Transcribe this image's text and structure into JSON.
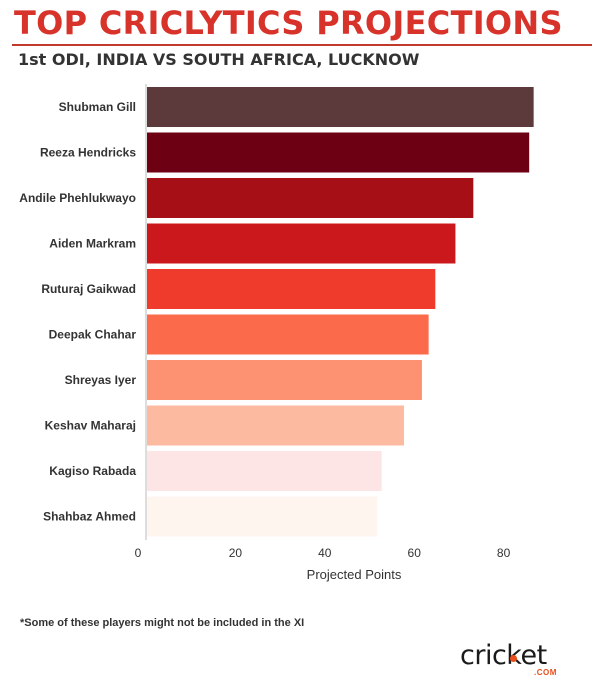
{
  "header": {
    "title": "TOP CRICLYTICS PROJECTIONS",
    "subtitle": "1st ODI, INDIA VS SOUTH AFRICA, LUCKNOW"
  },
  "footnote": "*Some of these players might not be included in the XI",
  "logo": {
    "text": "cricket",
    "sub": ".COM",
    "accent_color": "#e84e1b"
  },
  "chart_data": {
    "type": "bar",
    "orientation": "horizontal",
    "categories": [
      "Shubman Gill",
      "Reeza Hendricks",
      "Andile Phehlukwayo",
      "Aiden Markram",
      "Ruturaj Gaikwad",
      "Deepak Chahar",
      "Shreyas Iyer",
      "Keshav Maharaj",
      "Kagiso Rabada",
      "Shahbaz Ahmed"
    ],
    "values": [
      86.5,
      85.5,
      73,
      69,
      64.5,
      63,
      61.5,
      57.5,
      52.5,
      51.5
    ],
    "colors": [
      "#5c3a3c",
      "#6d0012",
      "#a50f15",
      "#cb181d",
      "#ef3b2c",
      "#fb6a4a",
      "#fc9272",
      "#fcbba1",
      "#fde5e5",
      "#fff5ef"
    ],
    "xlabel": "Projected Points",
    "ylabel": "",
    "xlim": [
      0,
      90
    ],
    "xticks": [
      0,
      20,
      40,
      60,
      80
    ],
    "grid": false
  }
}
